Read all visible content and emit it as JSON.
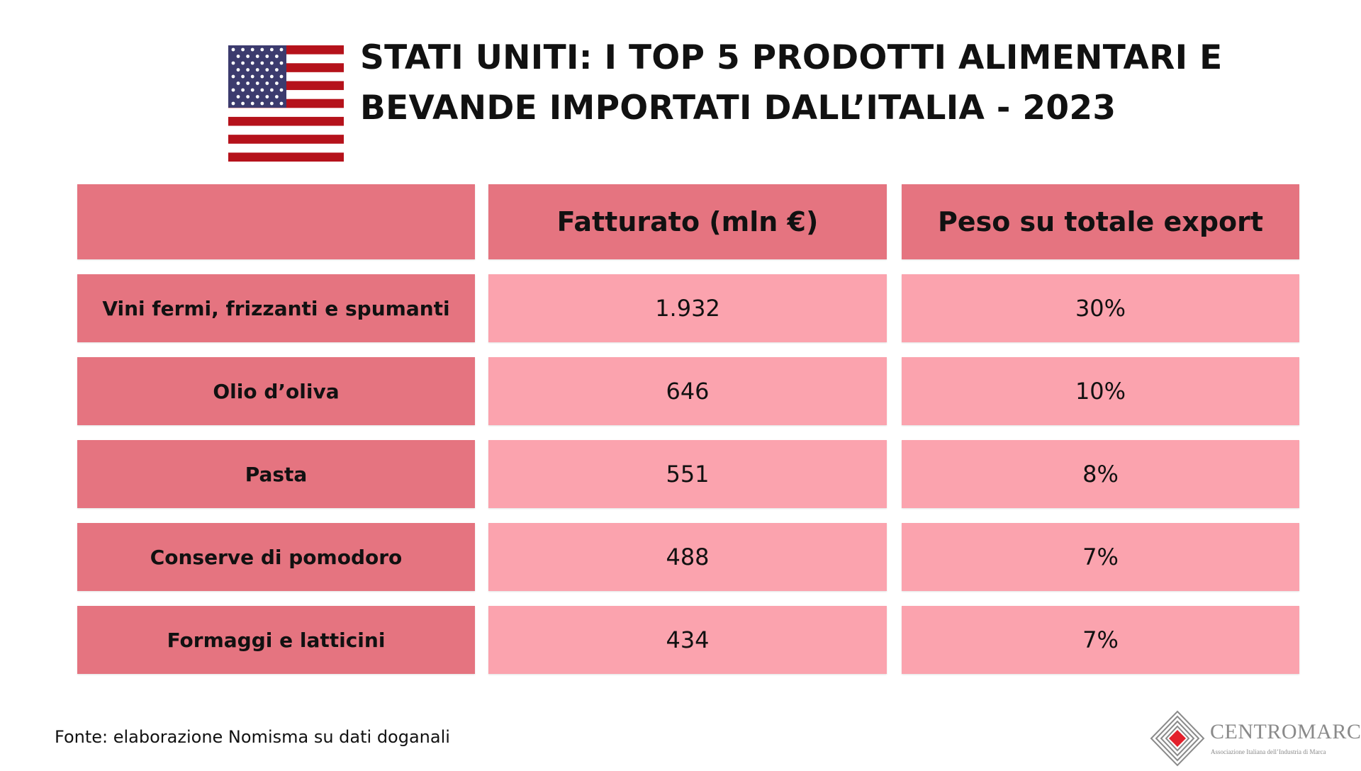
{
  "title_lines": [
    "STATI UNITI: I TOP 5 PRODOTTI ALIMENTARI E",
    "BEVANDE IMPORTATI DALL’ITALIA - 2023"
  ],
  "chart_data": {
    "type": "table",
    "title": "STATI UNITI: I TOP 5 PRODOTTI ALIMENTARI E BEVANDE IMPORTATI DALL’ITALIA - 2023",
    "columns": [
      "",
      "Fatturato (mln €)",
      "Peso su totale export"
    ],
    "rows": [
      {
        "label": "Vini fermi, frizzanti e spumanti",
        "fatturato": "1.932",
        "peso": "30%"
      },
      {
        "label": "Olio d’oliva",
        "fatturato": "646",
        "peso": "10%"
      },
      {
        "label": "Pasta",
        "fatturato": "551",
        "peso": "8%"
      },
      {
        "label": "Conserve di pomodoro",
        "fatturato": "488",
        "peso": "7%"
      },
      {
        "label": "Formaggi e latticini",
        "fatturato": "434",
        "peso": "7%"
      }
    ]
  },
  "footer": {
    "source": "Fonte: elaborazione Nomisma su dati doganali"
  },
  "logo": {
    "name": "CENTROMARCA",
    "tagline": "Associazione Italiana dell’Industria di Marca"
  },
  "icons": {
    "flag": "us-flag-icon",
    "logo": "centromarca-logo-icon"
  },
  "colors": {
    "header_cell": "#e57480",
    "value_cell": "#fba3ae",
    "flag_red": "#b5121b",
    "flag_blue": "#3c3b6e",
    "logo_red": "#e3202b"
  }
}
